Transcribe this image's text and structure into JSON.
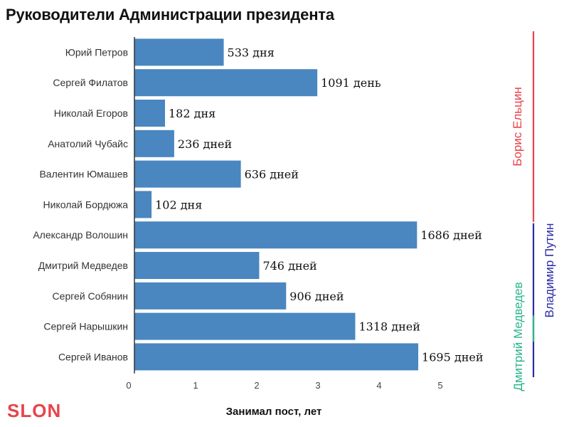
{
  "title": "Руководители Администрации президента",
  "logo": {
    "text": "SLON",
    "color": "#e8434b"
  },
  "chart_data": {
    "type": "bar",
    "orientation": "horizontal",
    "title": "Руководители Администрации президента",
    "xlabel": "Занимал пост, лет",
    "ylabel": "",
    "xlim": [
      0,
      5
    ],
    "xticks": [
      0,
      1,
      2,
      3,
      4,
      5
    ],
    "grid": false,
    "bar_color": "#4a86c0",
    "categories": [
      "Юрий Петров",
      "Сергей Филатов",
      "Николай Егоров",
      "Анатолий Чубайс",
      "Валентин Юмашев",
      "Николай Бордюжа",
      "Александр Волошин",
      "Дмитрий Медведев",
      "Сергей Собянин",
      "Сергей Нарышкин",
      "Сергей Иванов"
    ],
    "values": [
      1.46,
      2.99,
      0.5,
      0.65,
      1.74,
      0.28,
      4.62,
      2.04,
      2.48,
      3.61,
      4.64
    ],
    "value_labels": [
      "533 дня",
      "1091 день",
      "182 дня",
      "236 дней",
      "636 дней",
      "102 дня",
      "1686 дней",
      "746 дней",
      "906 дней",
      "1318 дней",
      "1695 дней"
    ],
    "periods": [
      {
        "name": "Борис Ельцин",
        "color": "#e8434b",
        "first": 0,
        "last": 6
      },
      {
        "name": "Владимир Путин",
        "color": "#2c2ca8",
        "first": 6,
        "last": 10
      },
      {
        "name": "Дмитрий Медведев",
        "color": "#2bb58c",
        "first": 9,
        "last": 9
      }
    ]
  }
}
